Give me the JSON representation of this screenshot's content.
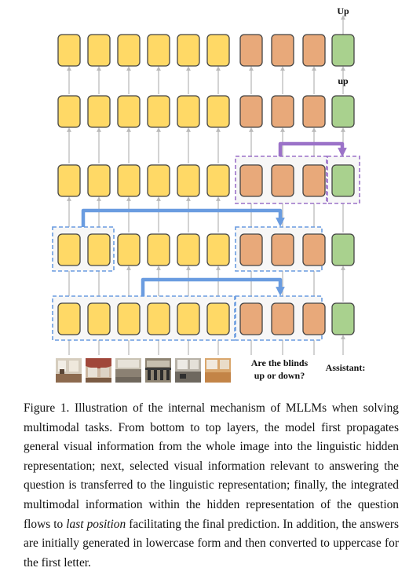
{
  "figure": {
    "top_token": "Up",
    "mid_token": "up",
    "question_lines": [
      "Are the blinds",
      "up or down?"
    ],
    "assistant_label": "Assistant:",
    "colors": {
      "visual_token": "#FFD966",
      "question_token": "#E8A97A",
      "assistant_token": "#A9D18E",
      "token_border": "#444444",
      "blue_flow": "#6A9CE0",
      "purple_flow": "#9B72C8",
      "gray_arrow": "#BBBBBB"
    },
    "thumbnails": [
      "image-patch-1",
      "image-patch-2",
      "image-patch-3",
      "image-patch-4",
      "image-patch-5",
      "image-patch-6"
    ]
  },
  "caption": {
    "prefix": "Figure 1. Illustration of the internal mechanism of MLLMs when solving multimodal tasks. From bottom to top layers, the model first propagates general visual information from the whole image into the linguistic hidden representation; next, selected visual information relevant to answering the question is transferred to the linguistic representation; finally, the integrated multimodal information within the hidden representation of the question flows to ",
    "emphasis": "last position",
    "suffix": " facilitating the final prediction. In addition, the answers are initially generated in lowercase form and then converted to uppercase for the first letter."
  }
}
